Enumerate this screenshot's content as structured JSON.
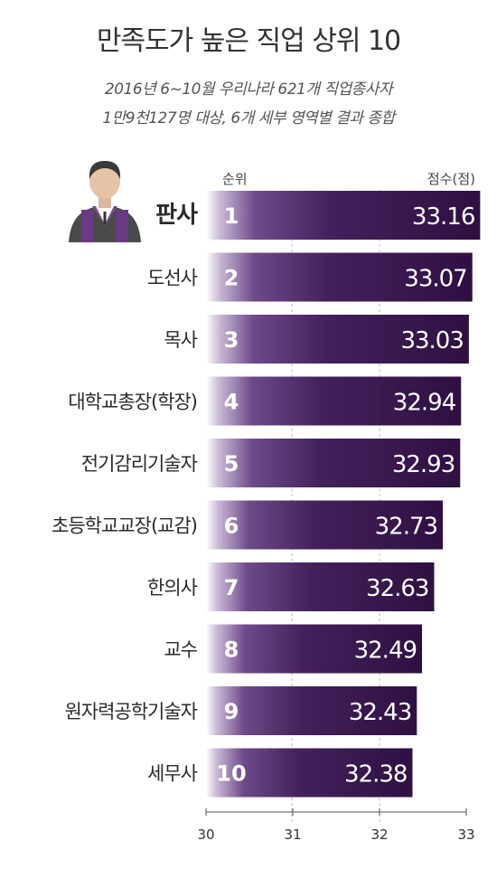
{
  "title": "만족도가 높은 직업 상위 10",
  "subtitle_lines": [
    "2016년 6~10월 우리나라 621개 직업종사자",
    "1만9천127명 대상, 6개 세부 영역별 결과 종합"
  ],
  "icon": "judge-figure-icon",
  "colors": {
    "bar_dark": "#3a1550",
    "bar_mid": "#5c3a78",
    "bar_light": "#ffffff",
    "text_light": "#ffffff"
  },
  "chart_data": {
    "type": "bar",
    "orientation": "horizontal",
    "rank_header": "순위",
    "value_header": "점수(점)",
    "categories": [
      "판사",
      "도선사",
      "목사",
      "대학교총장(학장)",
      "전기감리기술자",
      "초등학교교장(교감)",
      "한의사",
      "교수",
      "원자력공학기술자",
      "세무사"
    ],
    "ranks": [
      "1",
      "2",
      "3",
      "4",
      "5",
      "6",
      "7",
      "8",
      "9",
      "10"
    ],
    "values": [
      33.16,
      33.07,
      33.03,
      32.94,
      32.93,
      32.73,
      32.63,
      32.49,
      32.43,
      32.38
    ],
    "value_labels": [
      "33.16",
      "33.07",
      "33.03",
      "32.94",
      "32.93",
      "32.73",
      "32.63",
      "32.49",
      "32.43",
      "32.38"
    ],
    "xlim": [
      30,
      33
    ],
    "ticks": [
      "30",
      "31",
      "32",
      "33"
    ],
    "tick_values": [
      30,
      31,
      32,
      33
    ]
  }
}
